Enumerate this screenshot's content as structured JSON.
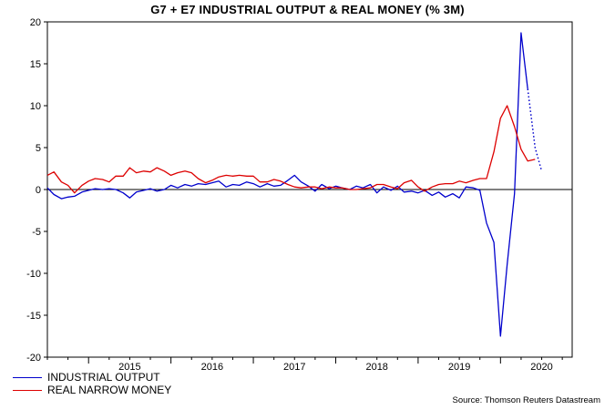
{
  "chart_data": {
    "type": "line",
    "title": "G7 + E7 INDUSTRIAL OUTPUT & REAL MONEY (% 3M)",
    "source": "Source: Thomson Reuters Datastream",
    "xlabel": "",
    "ylabel": "",
    "ylim": [
      -20,
      20
    ],
    "yticks": [
      20,
      15,
      10,
      5,
      0,
      -5,
      -10,
      -15,
      -20
    ],
    "ytick_labels": [
      "20",
      "15",
      "10",
      "5",
      "0",
      "-5",
      "-10",
      "-15",
      "-20"
    ],
    "x_start": 2014.5,
    "x_end": 2020.87,
    "year_labels": [
      "2015",
      "2016",
      "2017",
      "2018",
      "2019",
      "2020"
    ],
    "grid": false,
    "legend_position": "bottom-left",
    "series": [
      {
        "name": "INDUSTRIAL OUTPUT",
        "color": "#0000cc",
        "points": [
          [
            2014.5,
            0.2
          ],
          [
            2014.58,
            -0.6
          ],
          [
            2014.67,
            -1.1
          ],
          [
            2014.75,
            -0.9
          ],
          [
            2014.83,
            -0.8
          ],
          [
            2014.92,
            -0.3
          ],
          [
            2015.0,
            -0.1
          ],
          [
            2015.08,
            0.1
          ],
          [
            2015.17,
            0.0
          ],
          [
            2015.25,
            0.1
          ],
          [
            2015.33,
            0.0
          ],
          [
            2015.42,
            -0.4
          ],
          [
            2015.5,
            -1.0
          ],
          [
            2015.58,
            -0.3
          ],
          [
            2015.67,
            -0.1
          ],
          [
            2015.75,
            0.1
          ],
          [
            2015.83,
            -0.2
          ],
          [
            2015.92,
            0.0
          ],
          [
            2016.0,
            0.5
          ],
          [
            2016.08,
            0.2
          ],
          [
            2016.17,
            0.6
          ],
          [
            2016.25,
            0.4
          ],
          [
            2016.33,
            0.7
          ],
          [
            2016.42,
            0.6
          ],
          [
            2016.5,
            0.8
          ],
          [
            2016.58,
            1.0
          ],
          [
            2016.67,
            0.3
          ],
          [
            2016.75,
            0.6
          ],
          [
            2016.83,
            0.5
          ],
          [
            2016.92,
            0.9
          ],
          [
            2017.0,
            0.7
          ],
          [
            2017.08,
            0.3
          ],
          [
            2017.17,
            0.7
          ],
          [
            2017.25,
            0.4
          ],
          [
            2017.33,
            0.5
          ],
          [
            2017.42,
            1.1
          ],
          [
            2017.5,
            1.7
          ],
          [
            2017.58,
            0.9
          ],
          [
            2017.67,
            0.4
          ],
          [
            2017.75,
            -0.2
          ],
          [
            2017.83,
            0.6
          ],
          [
            2017.92,
            0.1
          ],
          [
            2018.0,
            0.4
          ],
          [
            2018.08,
            0.2
          ],
          [
            2018.17,
            0.0
          ],
          [
            2018.25,
            0.4
          ],
          [
            2018.33,
            0.2
          ],
          [
            2018.42,
            0.6
          ],
          [
            2018.5,
            -0.4
          ],
          [
            2018.58,
            0.3
          ],
          [
            2018.67,
            -0.1
          ],
          [
            2018.75,
            0.4
          ],
          [
            2018.83,
            -0.3
          ],
          [
            2018.92,
            -0.2
          ],
          [
            2019.0,
            -0.4
          ],
          [
            2019.08,
            -0.1
          ],
          [
            2019.17,
            -0.7
          ],
          [
            2019.25,
            -0.3
          ],
          [
            2019.33,
            -0.9
          ],
          [
            2019.42,
            -0.5
          ],
          [
            2019.5,
            -1.0
          ],
          [
            2019.58,
            0.3
          ],
          [
            2019.67,
            0.2
          ],
          [
            2019.75,
            -0.1
          ],
          [
            2019.83,
            -4.0
          ],
          [
            2019.92,
            -6.3
          ],
          [
            2020.0,
            -17.5
          ],
          [
            2020.08,
            -9.0
          ],
          [
            2020.17,
            -0.5
          ],
          [
            2020.25,
            18.7
          ],
          [
            2020.33,
            12.0
          ]
        ],
        "projection": [
          [
            2020.33,
            12.0
          ],
          [
            2020.42,
            5.0
          ],
          [
            2020.5,
            2.2
          ]
        ]
      },
      {
        "name": "REAL NARROW MONEY",
        "color": "#dd0000",
        "points": [
          [
            2014.5,
            1.7
          ],
          [
            2014.58,
            2.1
          ],
          [
            2014.67,
            0.9
          ],
          [
            2014.75,
            0.5
          ],
          [
            2014.83,
            -0.4
          ],
          [
            2014.92,
            0.5
          ],
          [
            2015.0,
            1.0
          ],
          [
            2015.08,
            1.3
          ],
          [
            2015.17,
            1.2
          ],
          [
            2015.25,
            0.9
          ],
          [
            2015.33,
            1.6
          ],
          [
            2015.42,
            1.6
          ],
          [
            2015.5,
            2.6
          ],
          [
            2015.58,
            2.0
          ],
          [
            2015.67,
            2.2
          ],
          [
            2015.75,
            2.1
          ],
          [
            2015.83,
            2.6
          ],
          [
            2015.92,
            2.2
          ],
          [
            2016.0,
            1.7
          ],
          [
            2016.08,
            2.0
          ],
          [
            2016.17,
            2.2
          ],
          [
            2016.25,
            2.0
          ],
          [
            2016.33,
            1.3
          ],
          [
            2016.42,
            0.8
          ],
          [
            2016.5,
            1.1
          ],
          [
            2016.58,
            1.5
          ],
          [
            2016.67,
            1.7
          ],
          [
            2016.75,
            1.6
          ],
          [
            2016.83,
            1.7
          ],
          [
            2016.92,
            1.6
          ],
          [
            2017.0,
            1.6
          ],
          [
            2017.08,
            0.9
          ],
          [
            2017.17,
            0.9
          ],
          [
            2017.25,
            1.2
          ],
          [
            2017.33,
            1.0
          ],
          [
            2017.42,
            0.6
          ],
          [
            2017.5,
            0.3
          ],
          [
            2017.58,
            0.2
          ],
          [
            2017.67,
            0.3
          ],
          [
            2017.75,
            0.3
          ],
          [
            2017.83,
            0.1
          ],
          [
            2017.92,
            0.3
          ],
          [
            2018.0,
            0.2
          ],
          [
            2018.08,
            0.2
          ],
          [
            2018.17,
            0.0
          ],
          [
            2018.25,
            0.0
          ],
          [
            2018.33,
            0.1
          ],
          [
            2018.42,
            0.2
          ],
          [
            2018.5,
            0.6
          ],
          [
            2018.58,
            0.6
          ],
          [
            2018.67,
            0.3
          ],
          [
            2018.75,
            0.1
          ],
          [
            2018.83,
            0.8
          ],
          [
            2018.92,
            1.1
          ],
          [
            2019.0,
            0.3
          ],
          [
            2019.08,
            -0.2
          ],
          [
            2019.17,
            0.3
          ],
          [
            2019.25,
            0.6
          ],
          [
            2019.33,
            0.7
          ],
          [
            2019.42,
            0.7
          ],
          [
            2019.5,
            1.0
          ],
          [
            2019.58,
            0.8
          ],
          [
            2019.67,
            1.1
          ],
          [
            2019.75,
            1.3
          ],
          [
            2019.83,
            1.3
          ],
          [
            2019.92,
            4.5
          ],
          [
            2020.0,
            8.5
          ],
          [
            2020.08,
            10.0
          ],
          [
            2020.17,
            7.5
          ],
          [
            2020.25,
            4.8
          ],
          [
            2020.33,
            3.4
          ],
          [
            2020.42,
            3.6
          ]
        ]
      }
    ]
  },
  "legend": {
    "items": [
      {
        "label": "INDUSTRIAL OUTPUT",
        "color": "#0000cc"
      },
      {
        "label": "REAL NARROW MONEY",
        "color": "#dd0000"
      }
    ]
  }
}
